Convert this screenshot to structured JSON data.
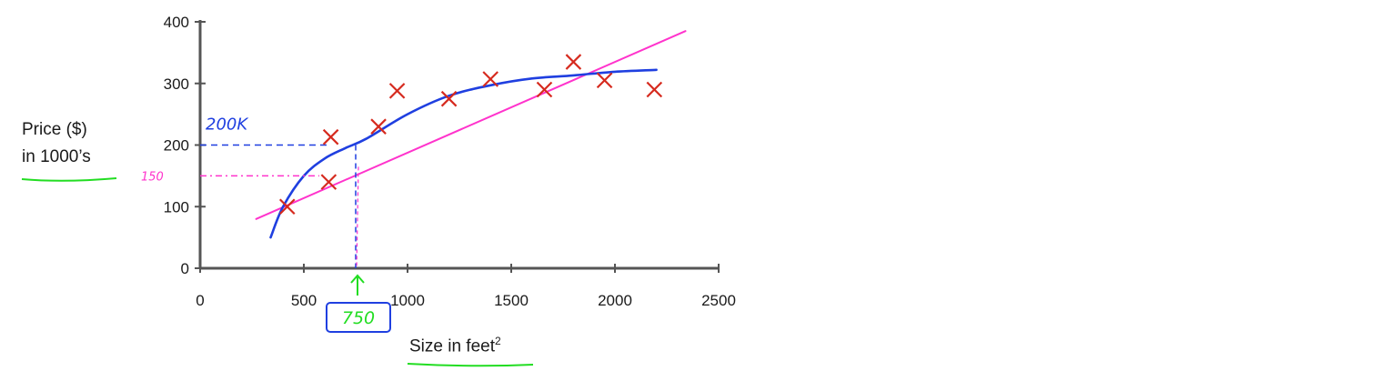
{
  "chart_data": {
    "type": "scatter",
    "title": "",
    "xlabel": "Size in feet",
    "xlabel_superscript": "2",
    "ylabel_line1": "Price ($)",
    "ylabel_line2": "in 1000’s",
    "xlim": [
      0,
      2500
    ],
    "ylim": [
      0,
      400
    ],
    "x_ticks": [
      0,
      500,
      1000,
      1500,
      2000,
      2500
    ],
    "y_ticks": [
      0,
      100,
      200,
      300,
      400
    ],
    "points": [
      {
        "x": 420,
        "y": 100
      },
      {
        "x": 620,
        "y": 140
      },
      {
        "x": 630,
        "y": 213
      },
      {
        "x": 860,
        "y": 230
      },
      {
        "x": 950,
        "y": 288
      },
      {
        "x": 1200,
        "y": 275
      },
      {
        "x": 1400,
        "y": 307
      },
      {
        "x": 1660,
        "y": 290
      },
      {
        "x": 1800,
        "y": 335
      },
      {
        "x": 1950,
        "y": 305
      },
      {
        "x": 2190,
        "y": 290
      }
    ],
    "fit_lines": [
      {
        "color": "#ff33cc",
        "shape": "straight",
        "x": [
          270,
          2340
        ],
        "y": [
          80,
          385
        ]
      },
      {
        "color": "#1f3fe0",
        "shape": "curve",
        "x": [
          340,
          400,
          500,
          600,
          700,
          800,
          1000,
          1200,
          1400,
          1600,
          1800,
          2000,
          2200
        ],
        "y": [
          50,
          100,
          150,
          178,
          195,
          210,
          250,
          280,
          297,
          308,
          313,
          319,
          322
        ]
      }
    ],
    "annotations": {
      "query_x": 750,
      "blue_label": "200K",
      "blue_value": 200,
      "pink_label": "150",
      "pink_value": 150,
      "boxed_label": "750"
    },
    "colors": {
      "axis": "#555555",
      "marker": "#d62a1e",
      "blue": "#1f3fe0",
      "pink": "#ff33cc",
      "green": "#22dd22"
    }
  }
}
